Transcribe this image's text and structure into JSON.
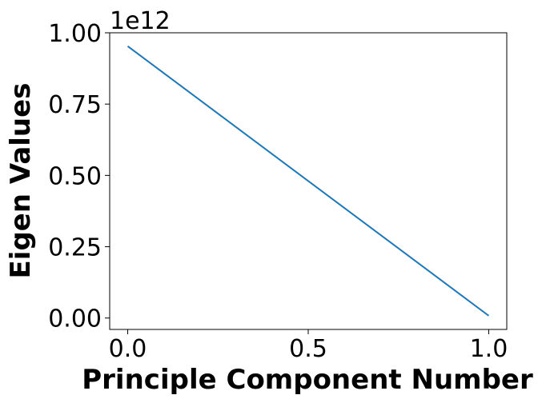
{
  "chart_data": {
    "type": "line",
    "xlabel": "Principle Component Number",
    "ylabel": "Eigen Values",
    "y_offset_text": "1e12",
    "xlim": [
      -0.05,
      1.05
    ],
    "ylim": [
      -0.04,
      1.0
    ],
    "x_ticks": [
      0.0,
      0.5,
      1.0
    ],
    "x_tick_labels": [
      "0.0",
      "0.5",
      "1.0"
    ],
    "y_ticks": [
      0.0,
      0.25,
      0.5,
      0.75,
      1.0
    ],
    "y_tick_labels": [
      "0.00",
      "0.25",
      "0.50",
      "0.75",
      "1.00"
    ],
    "grid": false,
    "series": [
      {
        "color": "#1f77b4",
        "x": [
          0.0,
          1.0
        ],
        "y": [
          0.953,
          0.008
        ]
      }
    ]
  }
}
